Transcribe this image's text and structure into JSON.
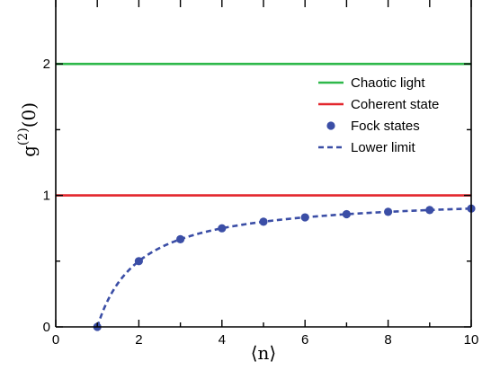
{
  "chart_data": {
    "type": "line",
    "xlabel": "⟨n⟩",
    "ylabel": "g(2)(0)",
    "ylabel_parts": {
      "base": "g",
      "sup": "(2)",
      "arg": "(0)"
    },
    "xlim": [
      0,
      10
    ],
    "ylim": [
      0,
      2.5
    ],
    "x_ticks": [
      0,
      2,
      4,
      6,
      8,
      10
    ],
    "y_ticks": [
      0,
      1,
      2
    ],
    "grid": false,
    "legend_position": "right",
    "series": [
      {
        "name": "Chaotic light",
        "kind": "hline",
        "y": 2,
        "color": "#2eb84a"
      },
      {
        "name": "Coherent state",
        "kind": "hline",
        "y": 1,
        "color": "#e3262d"
      },
      {
        "name": "Fock states",
        "kind": "scatter",
        "color": "#3b4ea6",
        "x": [
          1,
          2,
          3,
          4,
          5,
          6,
          7,
          8,
          9,
          10
        ],
        "y": [
          0,
          0.5,
          0.667,
          0.75,
          0.8,
          0.833,
          0.857,
          0.875,
          0.889,
          0.9
        ]
      },
      {
        "name": "Lower limit",
        "kind": "curve",
        "formula": "1 - 1/n",
        "x_range": [
          1,
          10
        ],
        "color": "#3b4ea6"
      }
    ]
  }
}
